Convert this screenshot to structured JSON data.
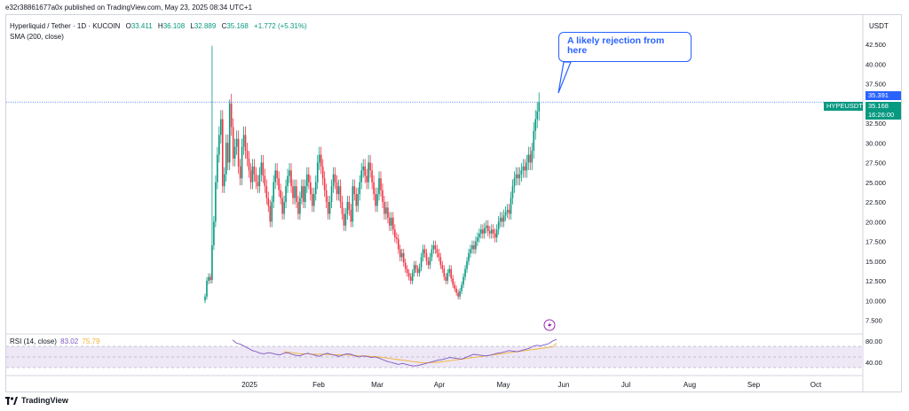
{
  "header": {
    "publisher": "e32r38861677a0x published on TradingView.com, May 23, 2025 08:34 UTC+1"
  },
  "legend": {
    "symbol": "Hyperliquid / Tether · 1D · KUCOIN",
    "open_label": "O",
    "open": "33.411",
    "high_label": "H",
    "high": "36.108",
    "low_label": "L",
    "low": "32.889",
    "close_label": "C",
    "close": "35.168",
    "change": "+1.772 (+5.31%)",
    "sma": "SMA (200, close)"
  },
  "rsi_legend": {
    "label": "RSI (14, close)",
    "value1": "83.02",
    "value2": "75.79"
  },
  "currency": "USDT",
  "price_tags": {
    "top": "35.391",
    "symbol": "HYPEUSDT",
    "price": "35.168",
    "countdown": "16:26:00"
  },
  "callout": {
    "line1": "A likely rejection from",
    "line2": "here"
  },
  "footer": {
    "brand": "TradingView"
  },
  "colors": {
    "up": "#089981",
    "down": "#f23645",
    "rsi": "#7e57c2",
    "rsi_ma": "#f0b232",
    "price_line": "#2962ff",
    "callout": "#2962ff",
    "rsi_band": "#ede7f6"
  },
  "chart_data": {
    "type": "candlestick",
    "y_ticks": [
      "42.500",
      "40.000",
      "37.500",
      "35.000",
      "32.500",
      "30.000",
      "27.500",
      "25.000",
      "22.500",
      "20.000",
      "17.500",
      "15.000",
      "12.500",
      "10.000",
      "7.500"
    ],
    "rsi_ticks": [
      "80.00",
      "40.00"
    ],
    "x_ticks": [
      "2025",
      "Feb",
      "Mar",
      "Apr",
      "May",
      "Jun",
      "Jul",
      "Aug",
      "Sep",
      "Oct"
    ],
    "y_range": [
      6.0,
      44.5
    ],
    "last_price": 35.168,
    "closes": [
      10.5,
      12.5,
      13.0,
      12.6,
      17.0,
      20.0,
      25.0,
      28.5,
      31.0,
      33.0,
      24.5,
      26.0,
      30.0,
      27.5,
      35.0,
      32.0,
      28.0,
      29.5,
      30.5,
      27.0,
      25.5,
      29.5,
      31.0,
      29.0,
      28.0,
      26.5,
      25.0,
      27.0,
      26.0,
      25.0,
      24.5,
      26.0,
      27.5,
      25.8,
      24.5,
      23.0,
      22.0,
      20.0,
      22.5,
      25.0,
      26.5,
      25.5,
      24.0,
      23.0,
      21.0,
      22.5,
      24.5,
      25.8,
      26.5,
      24.5,
      23.0,
      24.5,
      22.5,
      21.0,
      23.0,
      24.5,
      22.5,
      24.5,
      26.0,
      25.0,
      23.5,
      22.0,
      23.5,
      25.0,
      27.5,
      28.5,
      27.0,
      25.5,
      24.0,
      22.5,
      21.0,
      22.5,
      24.5,
      26.0,
      25.0,
      23.5,
      24.5,
      22.5,
      21.0,
      19.5,
      21.0,
      22.5,
      21.5,
      20.0,
      24.5,
      23.5,
      22.0,
      23.5,
      25.0,
      26.5,
      27.0,
      25.8,
      25.0,
      27.5,
      26.5,
      25.0,
      23.5,
      22.0,
      23.5,
      25.5,
      24.0,
      22.5,
      21.0,
      21.8,
      20.5,
      19.5,
      20.5,
      19.0,
      18.0,
      17.8,
      16.5,
      15.5,
      16.0,
      14.8,
      14.0,
      13.5,
      13.0,
      12.5,
      13.5,
      14.5,
      14.0,
      13.5,
      14.2,
      15.5,
      16.5,
      16.0,
      15.0,
      14.5,
      15.5,
      16.5,
      17.0,
      16.5,
      16.0,
      15.5,
      14.5,
      14.0,
      13.0,
      12.5,
      13.5,
      14.0,
      12.8,
      12.0,
      11.5,
      11.0,
      10.5,
      11.2,
      12.0,
      13.0,
      14.0,
      15.0,
      16.0,
      16.5,
      17.0,
      16.5,
      17.5,
      18.0,
      18.5,
      19.0,
      18.5,
      19.2,
      19.5,
      18.8,
      18.5,
      19.0,
      18.5,
      18.0,
      19.0,
      20.0,
      20.5,
      20.0,
      20.8,
      21.2,
      21.5,
      21.0,
      23.0,
      24.5,
      25.5,
      26.0,
      25.5,
      26.0,
      26.5,
      27.0,
      26.5,
      27.5,
      28.5,
      27.5,
      29.0,
      31.5,
      33.0,
      34.0,
      35.168
    ],
    "rsi": [
      82,
      76,
      74,
      70,
      66,
      62,
      60,
      57,
      56,
      58,
      57,
      55,
      54,
      57,
      58,
      55,
      53,
      52,
      55,
      57,
      55,
      53,
      51,
      55,
      57,
      55,
      53,
      51,
      54,
      56,
      55,
      52,
      50,
      52,
      51,
      49,
      50,
      48,
      45,
      42,
      40,
      38,
      36,
      38,
      36,
      34,
      33,
      34,
      36,
      38,
      40,
      42,
      44,
      45,
      47,
      49,
      48,
      47,
      46,
      49,
      52,
      55,
      54,
      53,
      52,
      53,
      55,
      57,
      58,
      60,
      62,
      61,
      60,
      62,
      64,
      66,
      70,
      72,
      71,
      73,
      75,
      80,
      83.02
    ],
    "rsi_ma": [
      null,
      null,
      null,
      null,
      null,
      null,
      null,
      null,
      null,
      null,
      null,
      null,
      null,
      60,
      59,
      58,
      57,
      56,
      56,
      56,
      55,
      55,
      55,
      55,
      55,
      54,
      54,
      54,
      54,
      54,
      53,
      53,
      52,
      52,
      52,
      51,
      51,
      50,
      49,
      48,
      47,
      46,
      45,
      44,
      43,
      42,
      41,
      40,
      39,
      39,
      39,
      40,
      40,
      41,
      42,
      43,
      44,
      45,
      46,
      47,
      48,
      49,
      50,
      51,
      52,
      53,
      54,
      55,
      56,
      57,
      58,
      59,
      60,
      61,
      62,
      63,
      64,
      65,
      66,
      67,
      68,
      69,
      75.79
    ]
  }
}
